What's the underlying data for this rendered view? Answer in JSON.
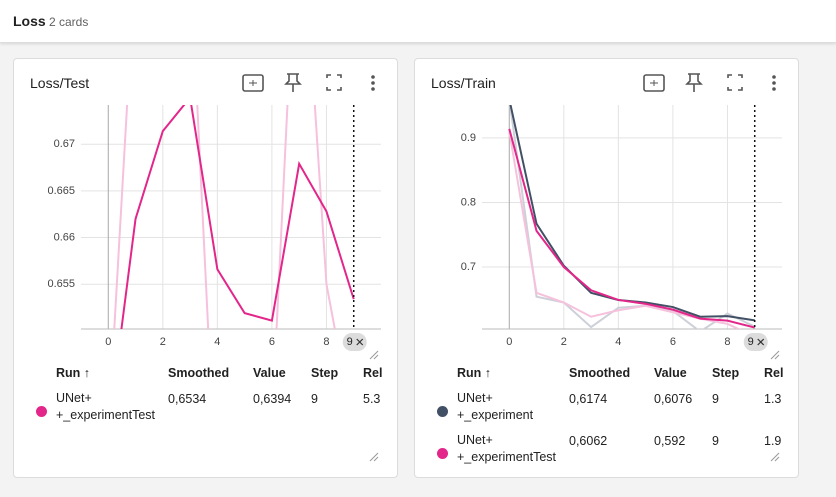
{
  "header": {
    "title": "Loss",
    "count": "2 cards"
  },
  "chart_data": [
    {
      "type": "line",
      "title": "Loss/Test",
      "x": [
        0,
        1,
        2,
        3,
        4,
        5,
        6,
        7,
        8,
        9
      ],
      "xlim": [
        -1,
        10
      ],
      "xticks": [
        0,
        2,
        4,
        6,
        8
      ],
      "ylim": [
        0.6502,
        0.6742
      ],
      "yticks": [
        0.655,
        0.66,
        0.665,
        0.67
      ],
      "grid": true,
      "step_marker": 9,
      "series": [
        {
          "name": "UNet+ +_experimentTest",
          "color": "#e3268a",
          "raw_color": "#f6c1dc",
          "values": [
            0.6392,
            0.662,
            0.6714,
            0.675,
            0.6566,
            0.6519,
            0.6511,
            0.6679,
            0.6628,
            0.6534
          ],
          "raw_values": [
            0.639,
            0.69,
            0.68,
            0.69,
            0.63,
            0.645,
            0.64,
            0.7,
            0.655,
            0.6394
          ]
        }
      ]
    },
    {
      "type": "line",
      "title": "Loss/Train",
      "x": [
        0,
        1,
        2,
        3,
        4,
        5,
        6,
        7,
        8,
        9
      ],
      "xlim": [
        -1,
        10
      ],
      "xticks": [
        0,
        2,
        4,
        6,
        8
      ],
      "ylim": [
        0.604,
        0.951
      ],
      "yticks": [
        0.7,
        0.8,
        0.9
      ],
      "grid": true,
      "step_marker": 9,
      "series": [
        {
          "name": "UNet+ +_experiment",
          "color": "#425066",
          "raw_color": "#cdd0d8",
          "values": [
            0.96,
            0.767,
            0.702,
            0.66,
            0.649,
            0.645,
            0.638,
            0.623,
            0.624,
            0.6174
          ],
          "raw_values": [
            0.96,
            0.654,
            0.645,
            0.607,
            0.637,
            0.64,
            0.632,
            0.6,
            0.628,
            0.6076
          ]
        },
        {
          "name": "UNet+ +_experimentTest",
          "color": "#e3268a",
          "raw_color": "#f6c1dc",
          "values": [
            0.914,
            0.756,
            0.7,
            0.664,
            0.649,
            0.643,
            0.634,
            0.62,
            0.617,
            0.6062
          ],
          "raw_values": [
            0.91,
            0.66,
            0.645,
            0.623,
            0.633,
            0.64,
            0.63,
            0.62,
            0.612,
            0.592
          ]
        }
      ]
    }
  ],
  "tables": [
    {
      "columns": [
        "Run ↑",
        "Smoothed",
        "Value",
        "Step",
        "Rel"
      ],
      "rows": [
        [
          "0,6534",
          "0,6394",
          "9",
          "5.3"
        ]
      ]
    },
    {
      "columns": [
        "Run ↑",
        "Smoothed",
        "Value",
        "Step",
        "Rel"
      ],
      "rows": [
        [
          "0,6174",
          "0,6076",
          "9",
          "1.3"
        ],
        [
          "0,6062",
          "0,592",
          "9",
          "1.9"
        ]
      ]
    }
  ]
}
